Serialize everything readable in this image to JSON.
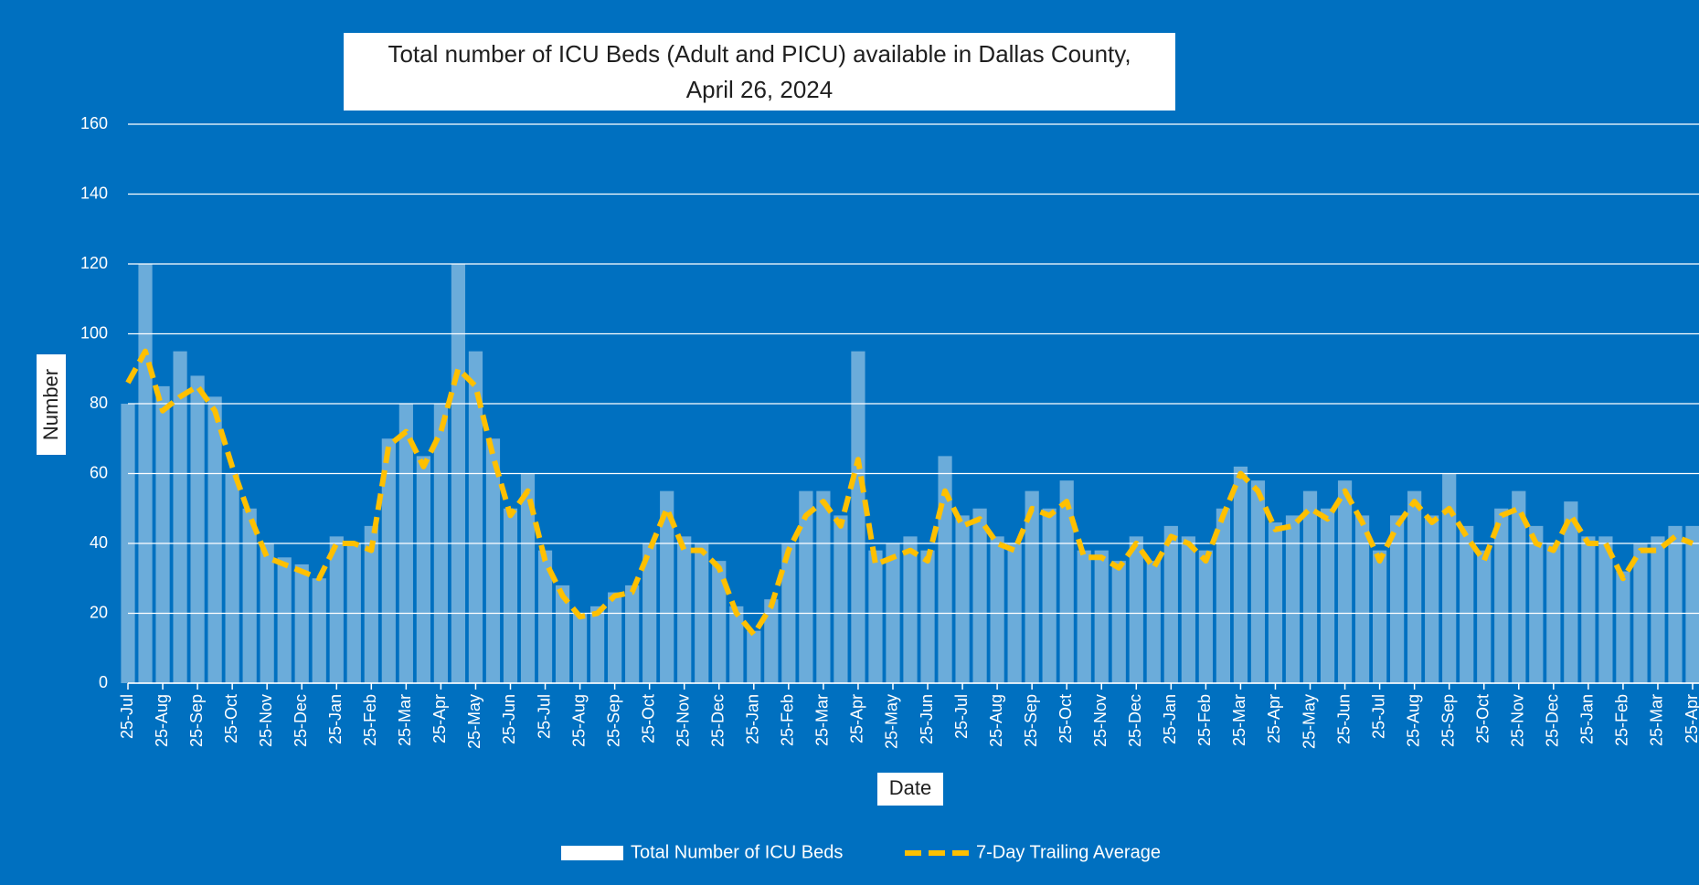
{
  "chart_data": {
    "type": "combo",
    "title": [
      "Total number of ICU Beds (Adult and PICU) available in Dallas County,",
      "April 26, 2024"
    ],
    "x_label": "Date",
    "y_label": "Number",
    "ylim": [
      0,
      160
    ],
    "yticks": [
      0,
      20,
      40,
      60,
      80,
      100,
      120,
      140,
      160
    ],
    "grid": true,
    "legend": "bottom",
    "categories": [
      "25-Jul",
      null,
      "25-Aug",
      null,
      "25-Sep",
      null,
      "25-Oct",
      null,
      "25-Nov",
      null,
      "25-Dec",
      null,
      "25-Jan",
      null,
      "25-Feb",
      null,
      "25-Mar",
      null,
      "25-Apr",
      null,
      "25-May",
      null,
      "25-Jun",
      null,
      "25-Jul",
      null,
      "25-Aug",
      null,
      "25-Sep",
      null,
      "25-Oct",
      null,
      "25-Nov",
      null,
      "25-Dec",
      null,
      "25-Jan",
      null,
      "25-Feb",
      null,
      "25-Mar",
      null,
      "25-Apr",
      null,
      "25-May",
      null,
      "25-Jun",
      null,
      "25-Jul",
      null,
      "25-Aug",
      null,
      "25-Sep",
      null,
      "25-Oct",
      null,
      "25-Nov",
      null,
      "25-Dec",
      null,
      "25-Jan",
      null,
      "25-Feb",
      null,
      "25-Mar",
      null,
      "25-Apr",
      null,
      "25-May",
      null,
      "25-Jun",
      null,
      "25-Jul",
      null,
      "25-Aug",
      null,
      "25-Sep",
      null,
      "25-Oct",
      null,
      "25-Nov",
      null,
      "25-Dec",
      null,
      "25-Jan",
      null,
      "25-Feb",
      null,
      "25-Mar",
      null,
      "25-Apr"
    ],
    "series": [
      {
        "name": "Total Number of ICU Beds",
        "type": "bar",
        "color": "#ffffff",
        "values": [
          80,
          120,
          85,
          95,
          88,
          82,
          60,
          50,
          40,
          36,
          34,
          30,
          42,
          40,
          45,
          70,
          80,
          65,
          80,
          120,
          95,
          70,
          50,
          60,
          38,
          28,
          20,
          22,
          26,
          28,
          40,
          55,
          42,
          40,
          35,
          22,
          15,
          24,
          40,
          55,
          55,
          48,
          95,
          38,
          40,
          42,
          38,
          65,
          48,
          50,
          42,
          40,
          55,
          50,
          58,
          38,
          38,
          35,
          42,
          35,
          45,
          42,
          38,
          50,
          62,
          58,
          46,
          48,
          55,
          50,
          58,
          48,
          38,
          48,
          55,
          48,
          60,
          45,
          38,
          50,
          55,
          45,
          40,
          52,
          42,
          42,
          32,
          40,
          42,
          45,
          45
        ]
      },
      {
        "name": "7-Day Trailing Average",
        "type": "line",
        "color": "#ffc000",
        "values": [
          86,
          95,
          78,
          82,
          85,
          78,
          62,
          48,
          36,
          34,
          32,
          30,
          40,
          40,
          38,
          68,
          72,
          62,
          72,
          90,
          85,
          65,
          48,
          55,
          35,
          25,
          19,
          20,
          25,
          26,
          38,
          50,
          38,
          38,
          33,
          20,
          14,
          22,
          38,
          48,
          52,
          45,
          64,
          34,
          36,
          38,
          35,
          55,
          45,
          47,
          40,
          38,
          50,
          48,
          52,
          36,
          36,
          33,
          40,
          33,
          42,
          40,
          35,
          48,
          60,
          55,
          44,
          45,
          50,
          47,
          55,
          46,
          35,
          45,
          52,
          46,
          50,
          42,
          35,
          48,
          50,
          40,
          38,
          48,
          40,
          40,
          30,
          38,
          38,
          42,
          40
        ]
      }
    ]
  }
}
